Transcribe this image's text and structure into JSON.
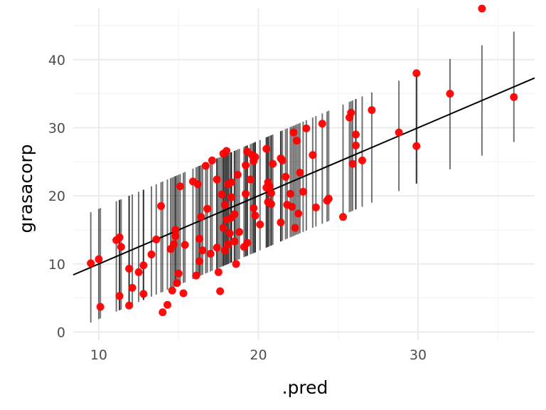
{
  "chart_data": {
    "type": "scatter",
    "title": "",
    "xlabel": ".pred",
    "ylabel": "grasacorp",
    "xlim": [
      8.4,
      37.3
    ],
    "ylim": [
      -1.2,
      47.5
    ],
    "x_ticks": [
      10,
      20,
      30
    ],
    "x_tick_labels": [
      "10",
      "20",
      "30"
    ],
    "y_ticks": [
      0,
      10,
      20,
      30,
      40
    ],
    "y_tick_labels": [
      "0",
      "10",
      "20",
      "30",
      "40"
    ],
    "grid": true,
    "legend": "none",
    "reference_line": {
      "slope": 1,
      "intercept": 0
    },
    "interval_half_width": 8.1,
    "series": [
      {
        "points": [
          [
            9.5,
            10.1
          ],
          [
            10.0,
            10.7
          ],
          [
            10.1,
            3.7
          ],
          [
            11.1,
            13.5
          ],
          [
            11.3,
            13.9
          ],
          [
            11.4,
            12.5
          ],
          [
            11.3,
            5.3
          ],
          [
            11.9,
            9.3
          ],
          [
            11.9,
            3.9
          ],
          [
            12.1,
            6.5
          ],
          [
            12.5,
            8.8
          ],
          [
            12.8,
            9.8
          ],
          [
            12.8,
            5.6
          ],
          [
            13.3,
            11.4
          ],
          [
            13.6,
            13.6
          ],
          [
            13.9,
            18.5
          ],
          [
            14.0,
            2.9
          ],
          [
            14.3,
            4.0
          ],
          [
            14.5,
            12.2
          ],
          [
            14.6,
            6.1
          ],
          [
            14.7,
            12.9
          ],
          [
            14.8,
            14.1
          ],
          [
            14.8,
            15.0
          ],
          [
            14.9,
            7.2
          ],
          [
            15.0,
            8.6
          ],
          [
            15.1,
            21.4
          ],
          [
            15.3,
            5.7
          ],
          [
            15.4,
            12.8
          ],
          [
            15.9,
            22.1
          ],
          [
            16.1,
            8.3
          ],
          [
            16.2,
            21.7
          ],
          [
            16.3,
            10.4
          ],
          [
            16.3,
            13.7
          ],
          [
            16.4,
            16.9
          ],
          [
            16.5,
            12.0
          ],
          [
            16.7,
            24.4
          ],
          [
            16.8,
            18.1
          ],
          [
            17.0,
            11.5
          ],
          [
            17.1,
            25.2
          ],
          [
            17.4,
            22.4
          ],
          [
            17.4,
            12.4
          ],
          [
            17.5,
            8.8
          ],
          [
            17.6,
            6.0
          ],
          [
            17.7,
            20.2
          ],
          [
            17.8,
            26.2
          ],
          [
            17.8,
            15.3
          ],
          [
            17.9,
            12.0
          ],
          [
            17.9,
            18.7
          ],
          [
            18.0,
            26.6
          ],
          [
            18.0,
            16.5
          ],
          [
            18.1,
            21.7
          ],
          [
            18.1,
            12.9
          ],
          [
            18.2,
            14.5
          ],
          [
            18.3,
            22.0
          ],
          [
            18.3,
            19.8
          ],
          [
            18.3,
            16.8
          ],
          [
            18.5,
            17.3
          ],
          [
            18.5,
            13.3
          ],
          [
            18.6,
            10.0
          ],
          [
            18.7,
            23.1
          ],
          [
            18.8,
            14.7
          ],
          [
            19.1,
            12.5
          ],
          [
            19.2,
            20.3
          ],
          [
            19.2,
            24.5
          ],
          [
            19.3,
            13.1
          ],
          [
            19.3,
            26.5
          ],
          [
            19.5,
            22.4
          ],
          [
            19.6,
            26.0
          ],
          [
            19.7,
            25.1
          ],
          [
            19.7,
            18.2
          ],
          [
            19.8,
            25.7
          ],
          [
            19.8,
            17.1
          ],
          [
            20.1,
            15.8
          ],
          [
            20.5,
            26.9
          ],
          [
            20.5,
            21.2
          ],
          [
            20.6,
            22.0
          ],
          [
            20.6,
            19.1
          ],
          [
            20.7,
            21.4
          ],
          [
            20.8,
            18.8
          ],
          [
            20.8,
            20.4
          ],
          [
            20.9,
            24.7
          ],
          [
            21.4,
            25.5
          ],
          [
            21.4,
            16.1
          ],
          [
            21.5,
            25.2
          ],
          [
            21.7,
            22.8
          ],
          [
            21.8,
            18.7
          ],
          [
            22.0,
            20.3
          ],
          [
            22.1,
            18.4
          ],
          [
            22.2,
            29.3
          ],
          [
            22.3,
            15.3
          ],
          [
            22.4,
            28.1
          ],
          [
            22.5,
            17.4
          ],
          [
            22.6,
            23.4
          ],
          [
            22.8,
            20.6
          ],
          [
            23.0,
            29.9
          ],
          [
            23.4,
            26.0
          ],
          [
            23.6,
            18.3
          ],
          [
            24.0,
            30.6
          ],
          [
            24.3,
            19.3
          ],
          [
            24.4,
            19.6
          ],
          [
            25.3,
            16.9
          ],
          [
            25.7,
            31.5
          ],
          [
            25.8,
            32.2
          ],
          [
            25.9,
            24.7
          ],
          [
            26.1,
            29.0
          ],
          [
            26.1,
            27.4
          ],
          [
            26.5,
            25.2
          ],
          [
            27.1,
            32.6
          ],
          [
            28.8,
            29.3
          ],
          [
            29.9,
            38.0
          ],
          [
            29.9,
            27.3
          ],
          [
            32.0,
            35.0
          ],
          [
            34.0,
            47.5
          ],
          [
            36.0,
            34.5
          ]
        ]
      }
    ]
  }
}
